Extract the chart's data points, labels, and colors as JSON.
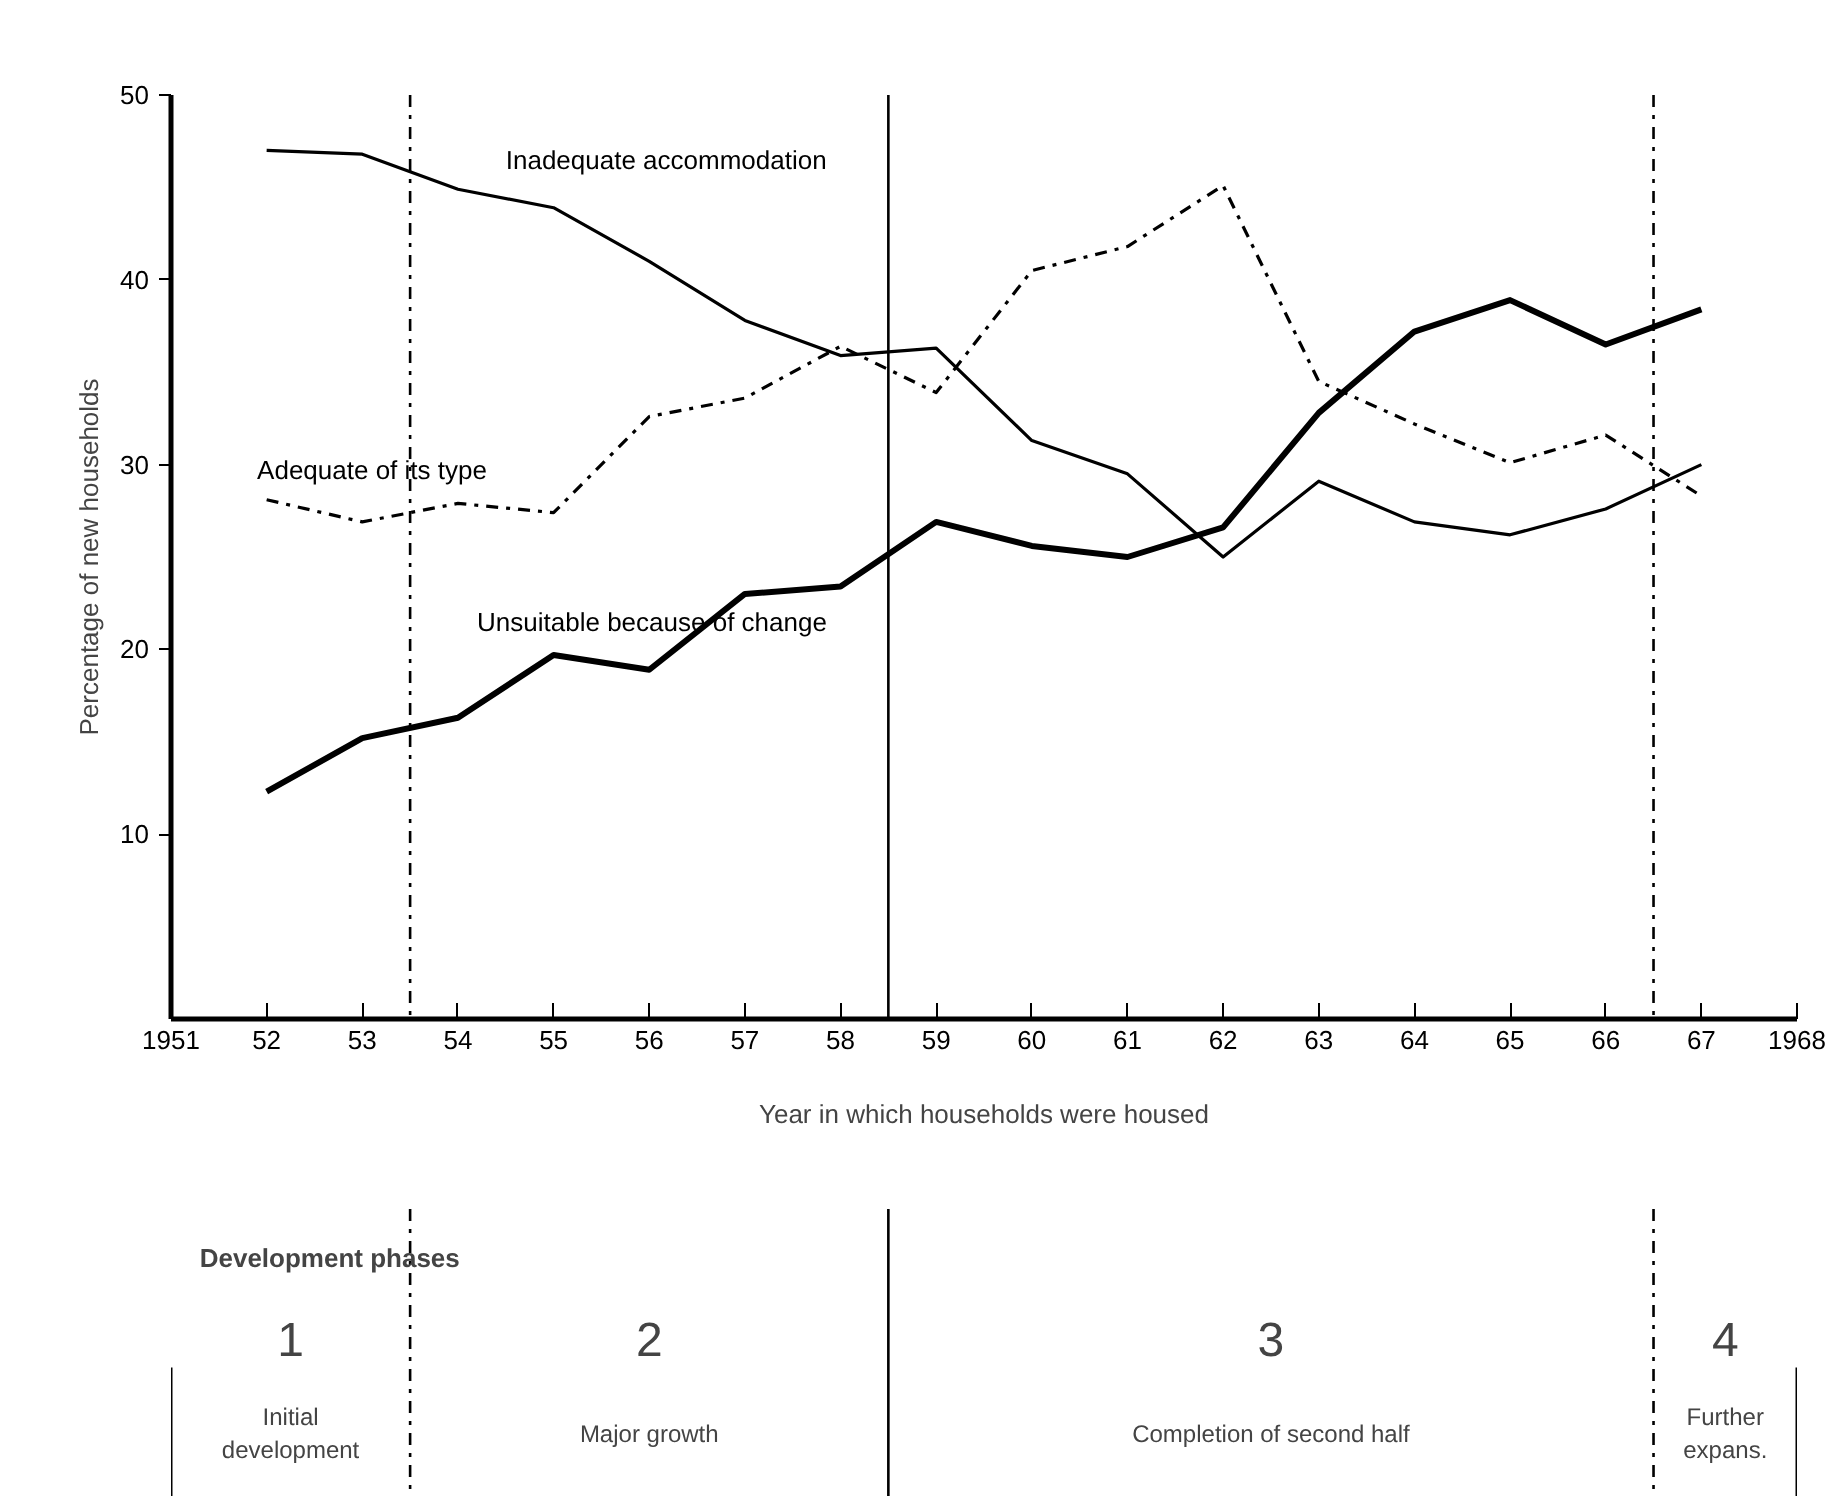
{
  "chart_data": {
    "type": "line",
    "xlabel": "Year in which households were housed",
    "ylabel": "Percentage of new households",
    "x": [
      1952,
      1953,
      1954,
      1955,
      1956,
      1957,
      1958,
      1959,
      1960,
      1961,
      1962,
      1963,
      1964,
      1965,
      1966,
      1967
    ],
    "series": [
      {
        "name": "Inadequate accommodation",
        "color": "#000000",
        "line_style": "solid",
        "values": [
          47.0,
          46.8,
          44.9,
          43.9,
          41.0,
          37.8,
          35.9,
          36.3,
          31.3,
          29.5,
          25.0,
          29.1,
          26.9,
          26.2,
          27.6,
          30.0
        ]
      },
      {
        "name": "Adequate of its type",
        "color": "#000000",
        "line_style": "dashdot",
        "values": [
          28.1,
          26.9,
          27.9,
          27.4,
          32.6,
          33.6,
          36.4,
          33.9,
          40.5,
          41.8,
          45.1,
          34.5,
          32.2,
          30.1,
          31.6,
          28.3
        ]
      },
      {
        "name": "Unsuitable because of change",
        "color": "#000000",
        "line_style": "solid",
        "values": [
          12.3,
          15.2,
          16.3,
          19.7,
          18.9,
          23.0,
          23.4,
          26.9,
          25.6,
          25.0,
          26.6,
          32.8,
          37.2,
          38.9,
          36.5,
          38.4
        ]
      }
    ],
    "xlim": [
      1951,
      1968
    ],
    "xticks": [
      1951,
      {
        "value": 1952,
        "label": "52"
      },
      {
        "value": 1953,
        "label": "53"
      },
      {
        "value": 1954,
        "label": "54"
      },
      {
        "value": 1955,
        "label": "55"
      },
      {
        "value": 1956,
        "label": "56"
      },
      {
        "value": 1957,
        "label": "57"
      },
      {
        "value": 1958,
        "label": "58"
      },
      {
        "value": 1959,
        "label": "59"
      },
      {
        "value": 1960,
        "label": "60"
      },
      {
        "value": 1961,
        "label": "61"
      },
      {
        "value": 1962,
        "label": "62"
      },
      {
        "value": 1963,
        "label": "63"
      },
      {
        "value": 1964,
        "label": "64"
      },
      {
        "value": 1965,
        "label": "65"
      },
      {
        "value": 1966,
        "label": "66"
      },
      {
        "value": 1967,
        "label": "67"
      },
      1968
    ],
    "ylim": [
      0,
      50
    ],
    "yticks": [
      10,
      20,
      30,
      40,
      50
    ],
    "ref_lines": [
      {
        "axis": "x",
        "value": 1953.5,
        "label": null,
        "line_style": "dashdot"
      },
      {
        "axis": "x",
        "value": 1958.5,
        "label": null,
        "line_style": "solid"
      },
      {
        "axis": "x",
        "value": 1966.5,
        "label": null,
        "line_style": "dashdot"
      }
    ],
    "annotations": [
      "Development phases",
      "1\nInitial\ndevelopment",
      "2\nMajor growth",
      "3\nCompletion of second half",
      "4\nFurther\nexpans."
    ],
    "grid": false,
    "legend": false,
    "marker": "none"
  }
}
